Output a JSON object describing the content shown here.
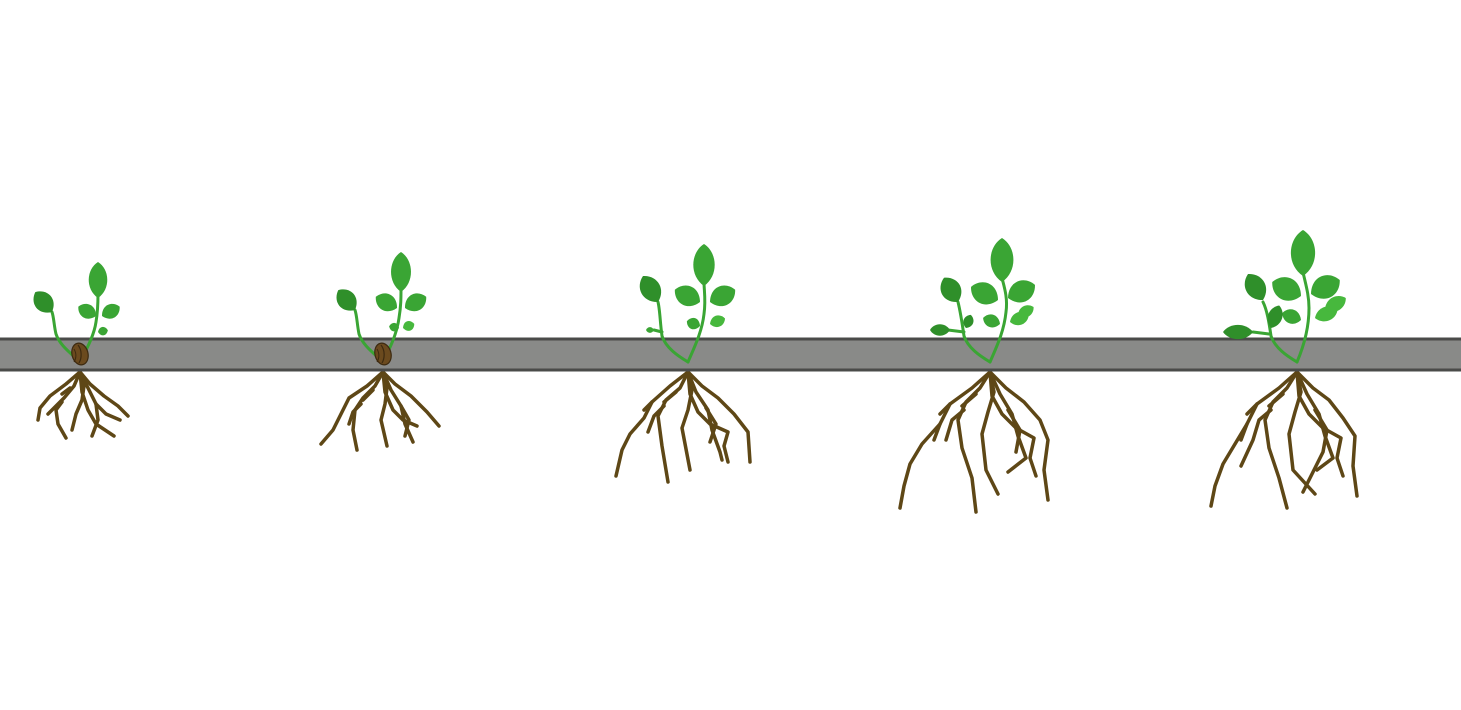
{
  "scene": {
    "description_visible_text": "",
    "background_color": "#ffffff",
    "soil_strip": {
      "fill_color": "#898a88",
      "border_color": "#4a4b49"
    },
    "colors": {
      "leaf_dark": "#2f8f2a",
      "leaf_mid": "#3aa534",
      "leaf_light": "#47b83d",
      "stem": "#3aa534",
      "root": "#5e4716",
      "seed": "#6b4a1e",
      "seed_dark": "#3d2a10"
    },
    "plants": [
      {
        "stage": 1,
        "leaf_count": 4,
        "has_seed": true
      },
      {
        "stage": 2,
        "leaf_count": 5,
        "has_seed": true
      },
      {
        "stage": 3,
        "leaf_count": 6,
        "has_seed": false
      },
      {
        "stage": 4,
        "leaf_count": 8,
        "has_seed": false
      },
      {
        "stage": 5,
        "leaf_count": 9,
        "has_seed": false
      }
    ]
  }
}
